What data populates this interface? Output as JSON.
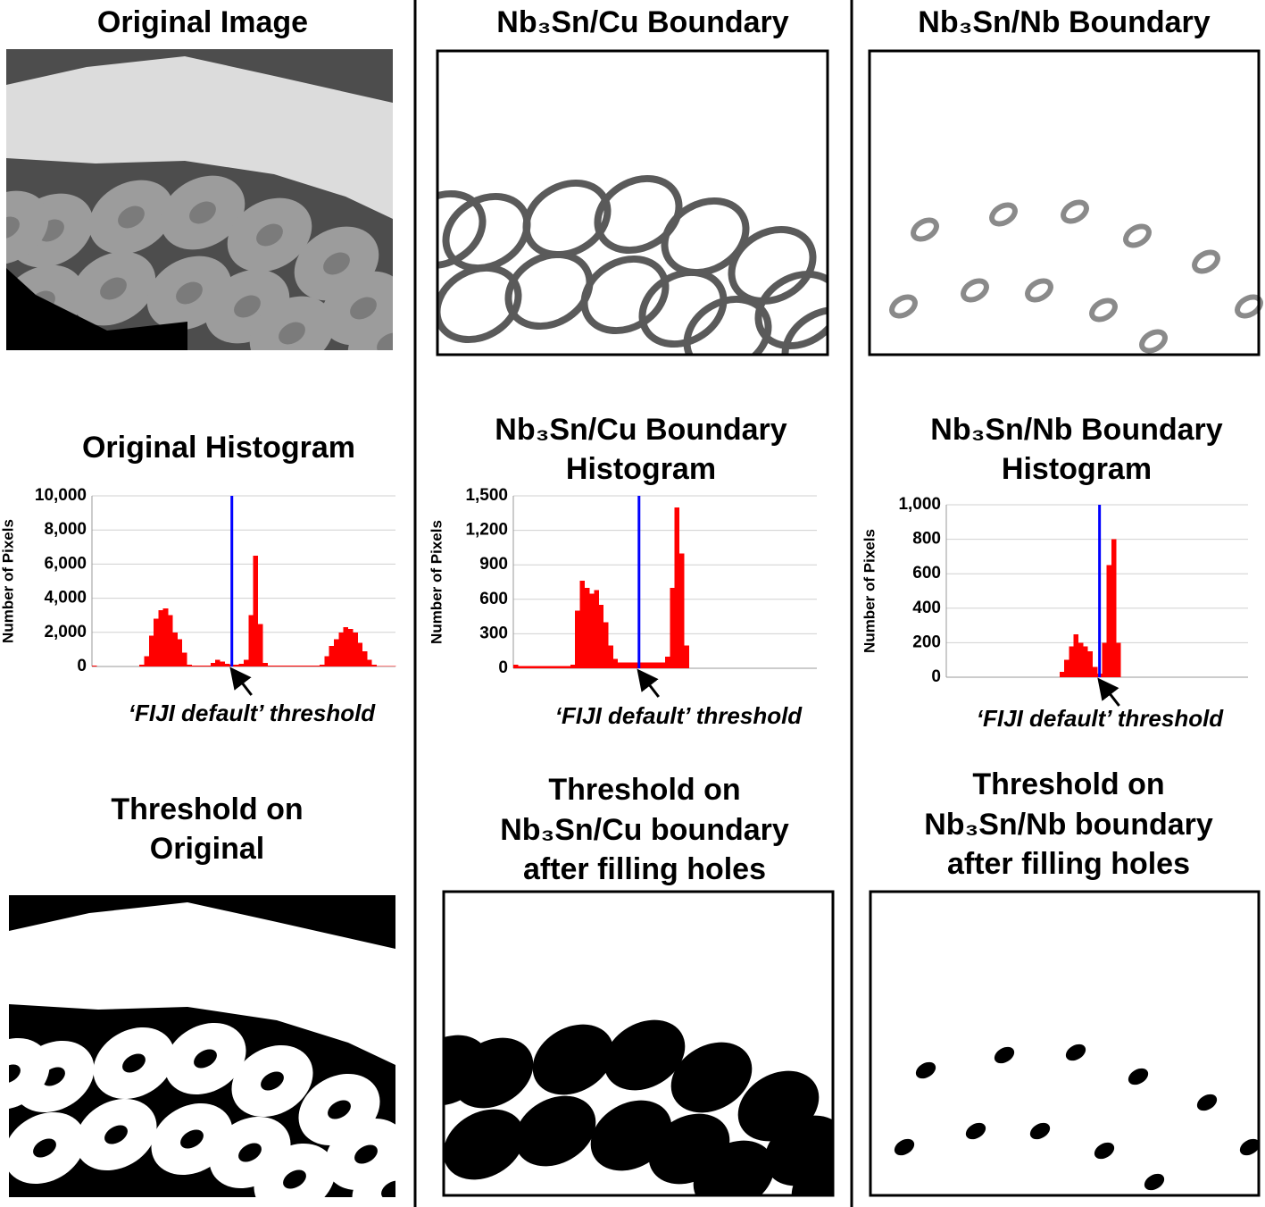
{
  "image_titles": [
    "Original Image",
    "Nb₃Sn/Cu Boundary",
    "Nb₃Sn/Nb Boundary"
  ],
  "threshold_titles": [
    [
      "Threshold on",
      "Original"
    ],
    [
      "Threshold on",
      "Nb₃Sn/Cu boundary",
      "after filling holes"
    ],
    [
      "Threshold on",
      "Nb₃Sn/Nb boundary",
      "after filling holes"
    ]
  ],
  "chart_data": [
    {
      "type": "histogram",
      "title": [
        "Original Histogram"
      ],
      "y_label": "Number of Pixels",
      "color": "#ff0000",
      "values": [
        50,
        0,
        0,
        0,
        0,
        0,
        0,
        0,
        0,
        0,
        100,
        600,
        1800,
        2800,
        3300,
        3400,
        3000,
        2000,
        1600,
        800,
        100,
        50,
        50,
        50,
        50,
        200,
        400,
        300,
        150,
        100,
        100,
        150,
        400,
        3000,
        6500,
        2500,
        200,
        50,
        50,
        50,
        50,
        50,
        50,
        50,
        50,
        50,
        50,
        50,
        100,
        600,
        1200,
        1600,
        2000,
        2300,
        2200,
        2000,
        1400,
        900,
        400,
        100,
        20,
        20,
        20,
        20
      ],
      "ylim": [
        0,
        10000
      ],
      "yticks": [
        0,
        {
          "value": 2000,
          "label": "2,000"
        },
        {
          "value": 4000,
          "label": "4,000"
        },
        {
          "value": 6000,
          "label": "6,000"
        },
        {
          "value": 8000,
          "label": "8,000"
        },
        {
          "value": 10000,
          "label": "10,000"
        }
      ],
      "grid": true,
      "threshold_index": 29,
      "threshold_color": "#0000ff",
      "annotation": "‘FIJI default’ threshold"
    },
    {
      "type": "histogram",
      "title": [
        "Nb₃Sn/Cu Boundary",
        "Histogram"
      ],
      "y_label": "Number of Pixels",
      "color": "#ff0000",
      "values": [
        30,
        20,
        20,
        20,
        20,
        20,
        20,
        20,
        20,
        20,
        20,
        20,
        30,
        500,
        760,
        700,
        650,
        680,
        550,
        400,
        200,
        80,
        50,
        50,
        50,
        50,
        50,
        50,
        50,
        50,
        50,
        50,
        100,
        700,
        1400,
        1000,
        200,
        0,
        0,
        0,
        0,
        0,
        0,
        0,
        0,
        0,
        0,
        0,
        0,
        0,
        0,
        0,
        0,
        0,
        0,
        0,
        0,
        0,
        0,
        0,
        0,
        0,
        0,
        0
      ],
      "ylim": [
        0,
        1500
      ],
      "yticks": [
        0,
        300,
        600,
        900,
        {
          "value": 1200,
          "label": "1,200"
        },
        {
          "value": 1500,
          "label": "1,500"
        }
      ],
      "grid": true,
      "threshold_index": 26,
      "threshold_color": "#0000ff",
      "annotation": "‘FIJI default’ threshold"
    },
    {
      "type": "histogram",
      "title": [
        "Nb₃Sn/Nb Boundary",
        "Histogram"
      ],
      "y_label": "Number of Pixels",
      "color": "#ff0000",
      "values": [
        0,
        0,
        0,
        0,
        0,
        0,
        0,
        0,
        0,
        0,
        0,
        0,
        0,
        0,
        0,
        0,
        0,
        0,
        0,
        0,
        0,
        0,
        0,
        0,
        30,
        100,
        180,
        250,
        200,
        180,
        150,
        60,
        20,
        200,
        650,
        800,
        200,
        0,
        0,
        0,
        0,
        0,
        0,
        0,
        0,
        0,
        0,
        0,
        0,
        0,
        0,
        0,
        0,
        0,
        0,
        0,
        0,
        0,
        0,
        0,
        0,
        0,
        0,
        0
      ],
      "ylim": [
        0,
        1000
      ],
      "yticks": [
        0,
        200,
        400,
        600,
        800,
        {
          "value": 1000,
          "label": "1,000"
        }
      ],
      "grid": true,
      "threshold_index": 32,
      "threshold_color": "#0000ff",
      "annotation": "‘FIJI default’ threshold"
    }
  ]
}
